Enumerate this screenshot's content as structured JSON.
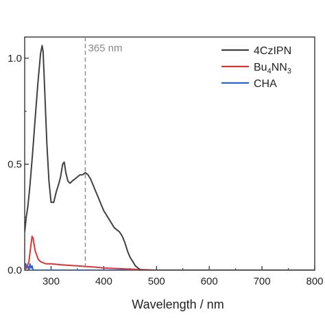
{
  "chart_data": {
    "type": "line",
    "xlabel": "Wavelength / nm",
    "ylabel": "",
    "xlim": [
      250,
      800
    ],
    "ylim": [
      0,
      1.1
    ],
    "x_ticks": [
      300,
      400,
      500,
      600,
      700,
      800
    ],
    "y_ticks": [
      {
        "value": 0.0,
        "label": "0.0"
      },
      {
        "value": 0.5,
        "label": "0.5"
      },
      {
        "value": 1.0,
        "label": "1.0"
      }
    ],
    "legend_position": "top-right",
    "grid": false,
    "annotation": {
      "x": 365,
      "label": "365 nm",
      "color": "#888888"
    },
    "series": [
      {
        "name": "4CzIPN",
        "color": "#404040",
        "x": [
          250,
          253,
          256,
          260,
          265,
          270,
          275,
          280,
          283,
          285,
          288,
          292,
          296,
          300,
          305,
          310,
          315,
          318,
          322,
          325,
          328,
          332,
          336,
          340,
          345,
          350,
          355,
          360,
          365,
          370,
          375,
          380,
          385,
          390,
          395,
          400,
          410,
          420,
          425,
          430,
          435,
          440,
          445,
          450,
          455,
          460,
          465,
          470,
          480,
          500,
          550,
          600,
          650,
          700,
          750,
          800
        ],
        "y": [
          0.18,
          0.25,
          0.3,
          0.4,
          0.55,
          0.72,
          0.88,
          1.02,
          1.06,
          1.03,
          0.85,
          0.6,
          0.42,
          0.32,
          0.32,
          0.37,
          0.41,
          0.44,
          0.5,
          0.51,
          0.46,
          0.42,
          0.41,
          0.42,
          0.43,
          0.44,
          0.45,
          0.45,
          0.46,
          0.45,
          0.43,
          0.4,
          0.37,
          0.34,
          0.31,
          0.28,
          0.24,
          0.2,
          0.19,
          0.18,
          0.16,
          0.13,
          0.09,
          0.06,
          0.04,
          0.02,
          0.01,
          0.0,
          0.0,
          0.0,
          0.0,
          0.0,
          0.0,
          0.0,
          0.0,
          0.0
        ]
      },
      {
        "name": "Bu4NN3",
        "color": "#d93535",
        "x": [
          250,
          255,
          258,
          260,
          262,
          264,
          266,
          268,
          270,
          273,
          276,
          280,
          285,
          290,
          300,
          320,
          350,
          380,
          400,
          450,
          500,
          600,
          700,
          800
        ],
        "y": [
          0.0,
          0.02,
          0.04,
          0.08,
          0.12,
          0.16,
          0.15,
          0.12,
          0.09,
          0.07,
          0.05,
          0.04,
          0.035,
          0.03,
          0.03,
          0.025,
          0.02,
          0.015,
          0.01,
          0.005,
          0.0,
          0.0,
          0.0,
          0.0
        ]
      },
      {
        "name": "CHA",
        "color": "#2a62c9",
        "x": [
          250,
          252,
          254,
          256,
          258,
          260,
          262,
          264,
          266,
          270,
          280,
          300,
          400,
          500,
          600,
          700,
          800
        ],
        "y": [
          0.0,
          0.03,
          0.01,
          0.02,
          0.0,
          0.03,
          0.01,
          0.02,
          0.0,
          0.0,
          0.0,
          0.0,
          0.0,
          0.0,
          0.0,
          0.0,
          0.0
        ]
      }
    ]
  },
  "legend": {
    "items": [
      {
        "label": "4CzIPN",
        "sub": "",
        "post": "",
        "color": "#404040"
      },
      {
        "label": "Bu",
        "sub": "4",
        "mid": "NN",
        "sub2": "3",
        "color": "#d93535"
      },
      {
        "label": "CHA",
        "sub": "",
        "post": "",
        "color": "#2a62c9"
      }
    ]
  }
}
